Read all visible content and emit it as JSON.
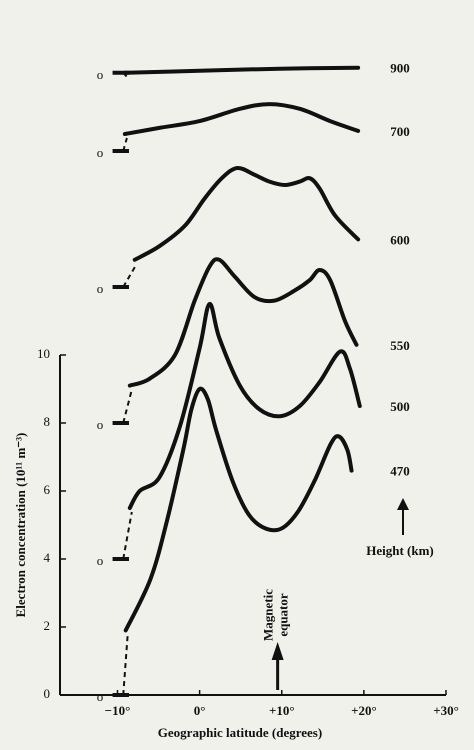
{
  "chart_data": {
    "type": "line",
    "xlabel": "Geographic latitude (degrees)",
    "ylabel": "Electron concentration (10¹¹ m⁻³)",
    "xlim": [
      -17,
      30
    ],
    "ylim": [
      0,
      10
    ],
    "xticks": [
      {
        "value": -10,
        "label": "−10°"
      },
      {
        "value": 0,
        "label": "0°"
      },
      {
        "value": 10,
        "label": "+10°"
      },
      {
        "value": 20,
        "label": "+20°"
      },
      {
        "value": 30,
        "label": "+30°"
      }
    ],
    "yticks": [
      0,
      2,
      4,
      6,
      8,
      10
    ],
    "legend_title": "Height (km)",
    "annotation": {
      "text": [
        "Magnetic",
        "equator"
      ],
      "x": 9.5
    },
    "series": [
      {
        "name": "900",
        "color": "#111",
        "zero": 18.3,
        "zero_label": "o",
        "x": [
          -9.1,
          0,
          9.8,
          19.3
        ],
        "values": [
          0,
          0.06,
          0.12,
          0.15
        ]
      },
      {
        "name": "700",
        "color": "#111",
        "zero": 16,
        "zero_label": "o",
        "x": [
          -9.1,
          -4.9,
          0,
          4.9,
          8.5,
          12.2,
          15.9,
          19.3
        ],
        "values": [
          0.5,
          0.68,
          0.88,
          1.24,
          1.38,
          1.24,
          0.88,
          0.59
        ]
      },
      {
        "name": "600",
        "color": "#111",
        "zero": 12,
        "zero_label": "o",
        "x": [
          -7.9,
          -4.9,
          -1.8,
          0.6,
          2.7,
          4.6,
          6.7,
          8.5,
          10.4,
          12.2,
          13.4,
          14.6,
          16.5,
          19.3
        ],
        "values": [
          0.8,
          1.2,
          1.8,
          2.6,
          3.2,
          3.5,
          3.3,
          3.1,
          3.0,
          3.1,
          3.2,
          2.9,
          2.1,
          1.4
        ]
      },
      {
        "name": "550",
        "color": "#111",
        "zero": 8,
        "zero_label": "o",
        "x": [
          -8.5,
          -6.1,
          -3.0,
          -0.6,
          1.2,
          2.4,
          4.3,
          6.7,
          9.1,
          11.6,
          13.4,
          14.6,
          15.9,
          17.7,
          19.1
        ],
        "values": [
          1.1,
          1.3,
          2.0,
          3.6,
          4.6,
          4.8,
          4.3,
          3.7,
          3.6,
          3.9,
          4.2,
          4.5,
          4.2,
          3.0,
          2.3
        ]
      },
      {
        "name": "500",
        "color": "#111",
        "zero": 4,
        "zero_label": "o",
        "x": [
          -8.5,
          -7.3,
          -4.9,
          -2.4,
          0,
          1.2,
          2.4,
          4.9,
          7.3,
          9.8,
          12.2,
          14.6,
          17.1,
          18.3,
          19.5
        ],
        "values": [
          1.5,
          2.0,
          2.4,
          3.9,
          6.2,
          7.5,
          6.5,
          5.1,
          4.4,
          4.2,
          4.5,
          5.2,
          6.1,
          5.6,
          4.5
        ]
      },
      {
        "name": "470",
        "color": "#111",
        "zero": 0,
        "zero_label": "o",
        "x": [
          -9,
          -6,
          -4,
          -2,
          -1,
          0,
          1,
          2,
          4,
          6,
          8,
          10,
          12,
          14,
          16,
          17,
          18,
          18.5
        ],
        "values": [
          1.9,
          3.4,
          5.1,
          7.2,
          8.4,
          9.0,
          8.7,
          7.8,
          6.3,
          5.3,
          4.9,
          4.9,
          5.4,
          6.3,
          7.4,
          7.6,
          7.2,
          6.6
        ]
      }
    ]
  }
}
